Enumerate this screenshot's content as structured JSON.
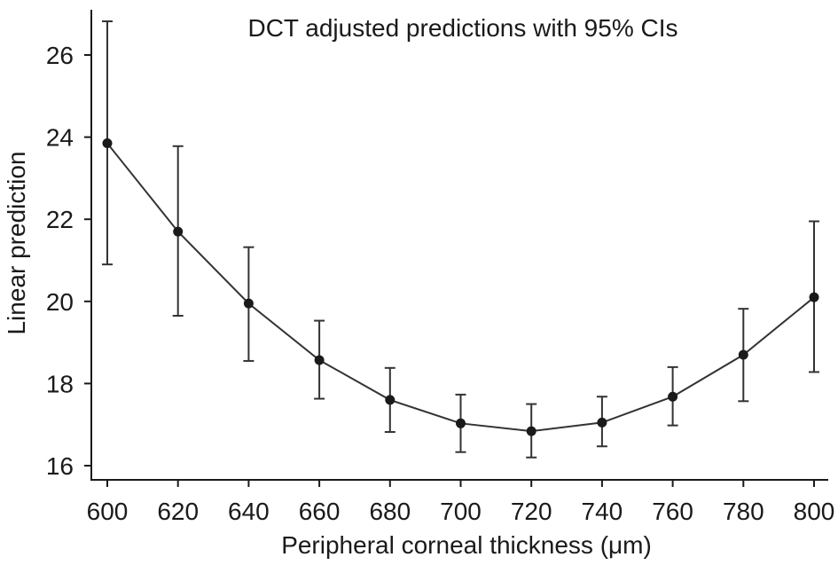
{
  "chart_data": {
    "type": "line",
    "title": "DCT adjusted predictions with 95% CIs",
    "xlabel": "Peripheral corneal thickness (μm)",
    "ylabel": "Linear prediction",
    "xlim": [
      600,
      800
    ],
    "ylim": [
      15.6,
      27.2
    ],
    "x_ticks": [
      600,
      620,
      640,
      660,
      680,
      700,
      720,
      740,
      760,
      780,
      800
    ],
    "y_ticks": [
      16,
      18,
      20,
      22,
      24,
      26
    ],
    "grid": false,
    "series": [
      {
        "x": [
          600,
          620,
          640,
          660,
          680,
          700,
          720,
          740,
          760,
          780,
          800
        ],
        "values": [
          23.85,
          21.7,
          19.95,
          18.57,
          17.6,
          17.03,
          16.84,
          17.05,
          17.68,
          18.7,
          20.1
        ],
        "ci_lower": [
          20.9,
          19.65,
          18.55,
          17.63,
          16.82,
          16.33,
          16.2,
          16.47,
          16.98,
          17.57,
          18.28
        ],
        "ci_upper": [
          26.82,
          23.78,
          21.32,
          19.53,
          18.38,
          17.73,
          17.5,
          17.68,
          18.4,
          19.82,
          21.95
        ]
      }
    ]
  }
}
